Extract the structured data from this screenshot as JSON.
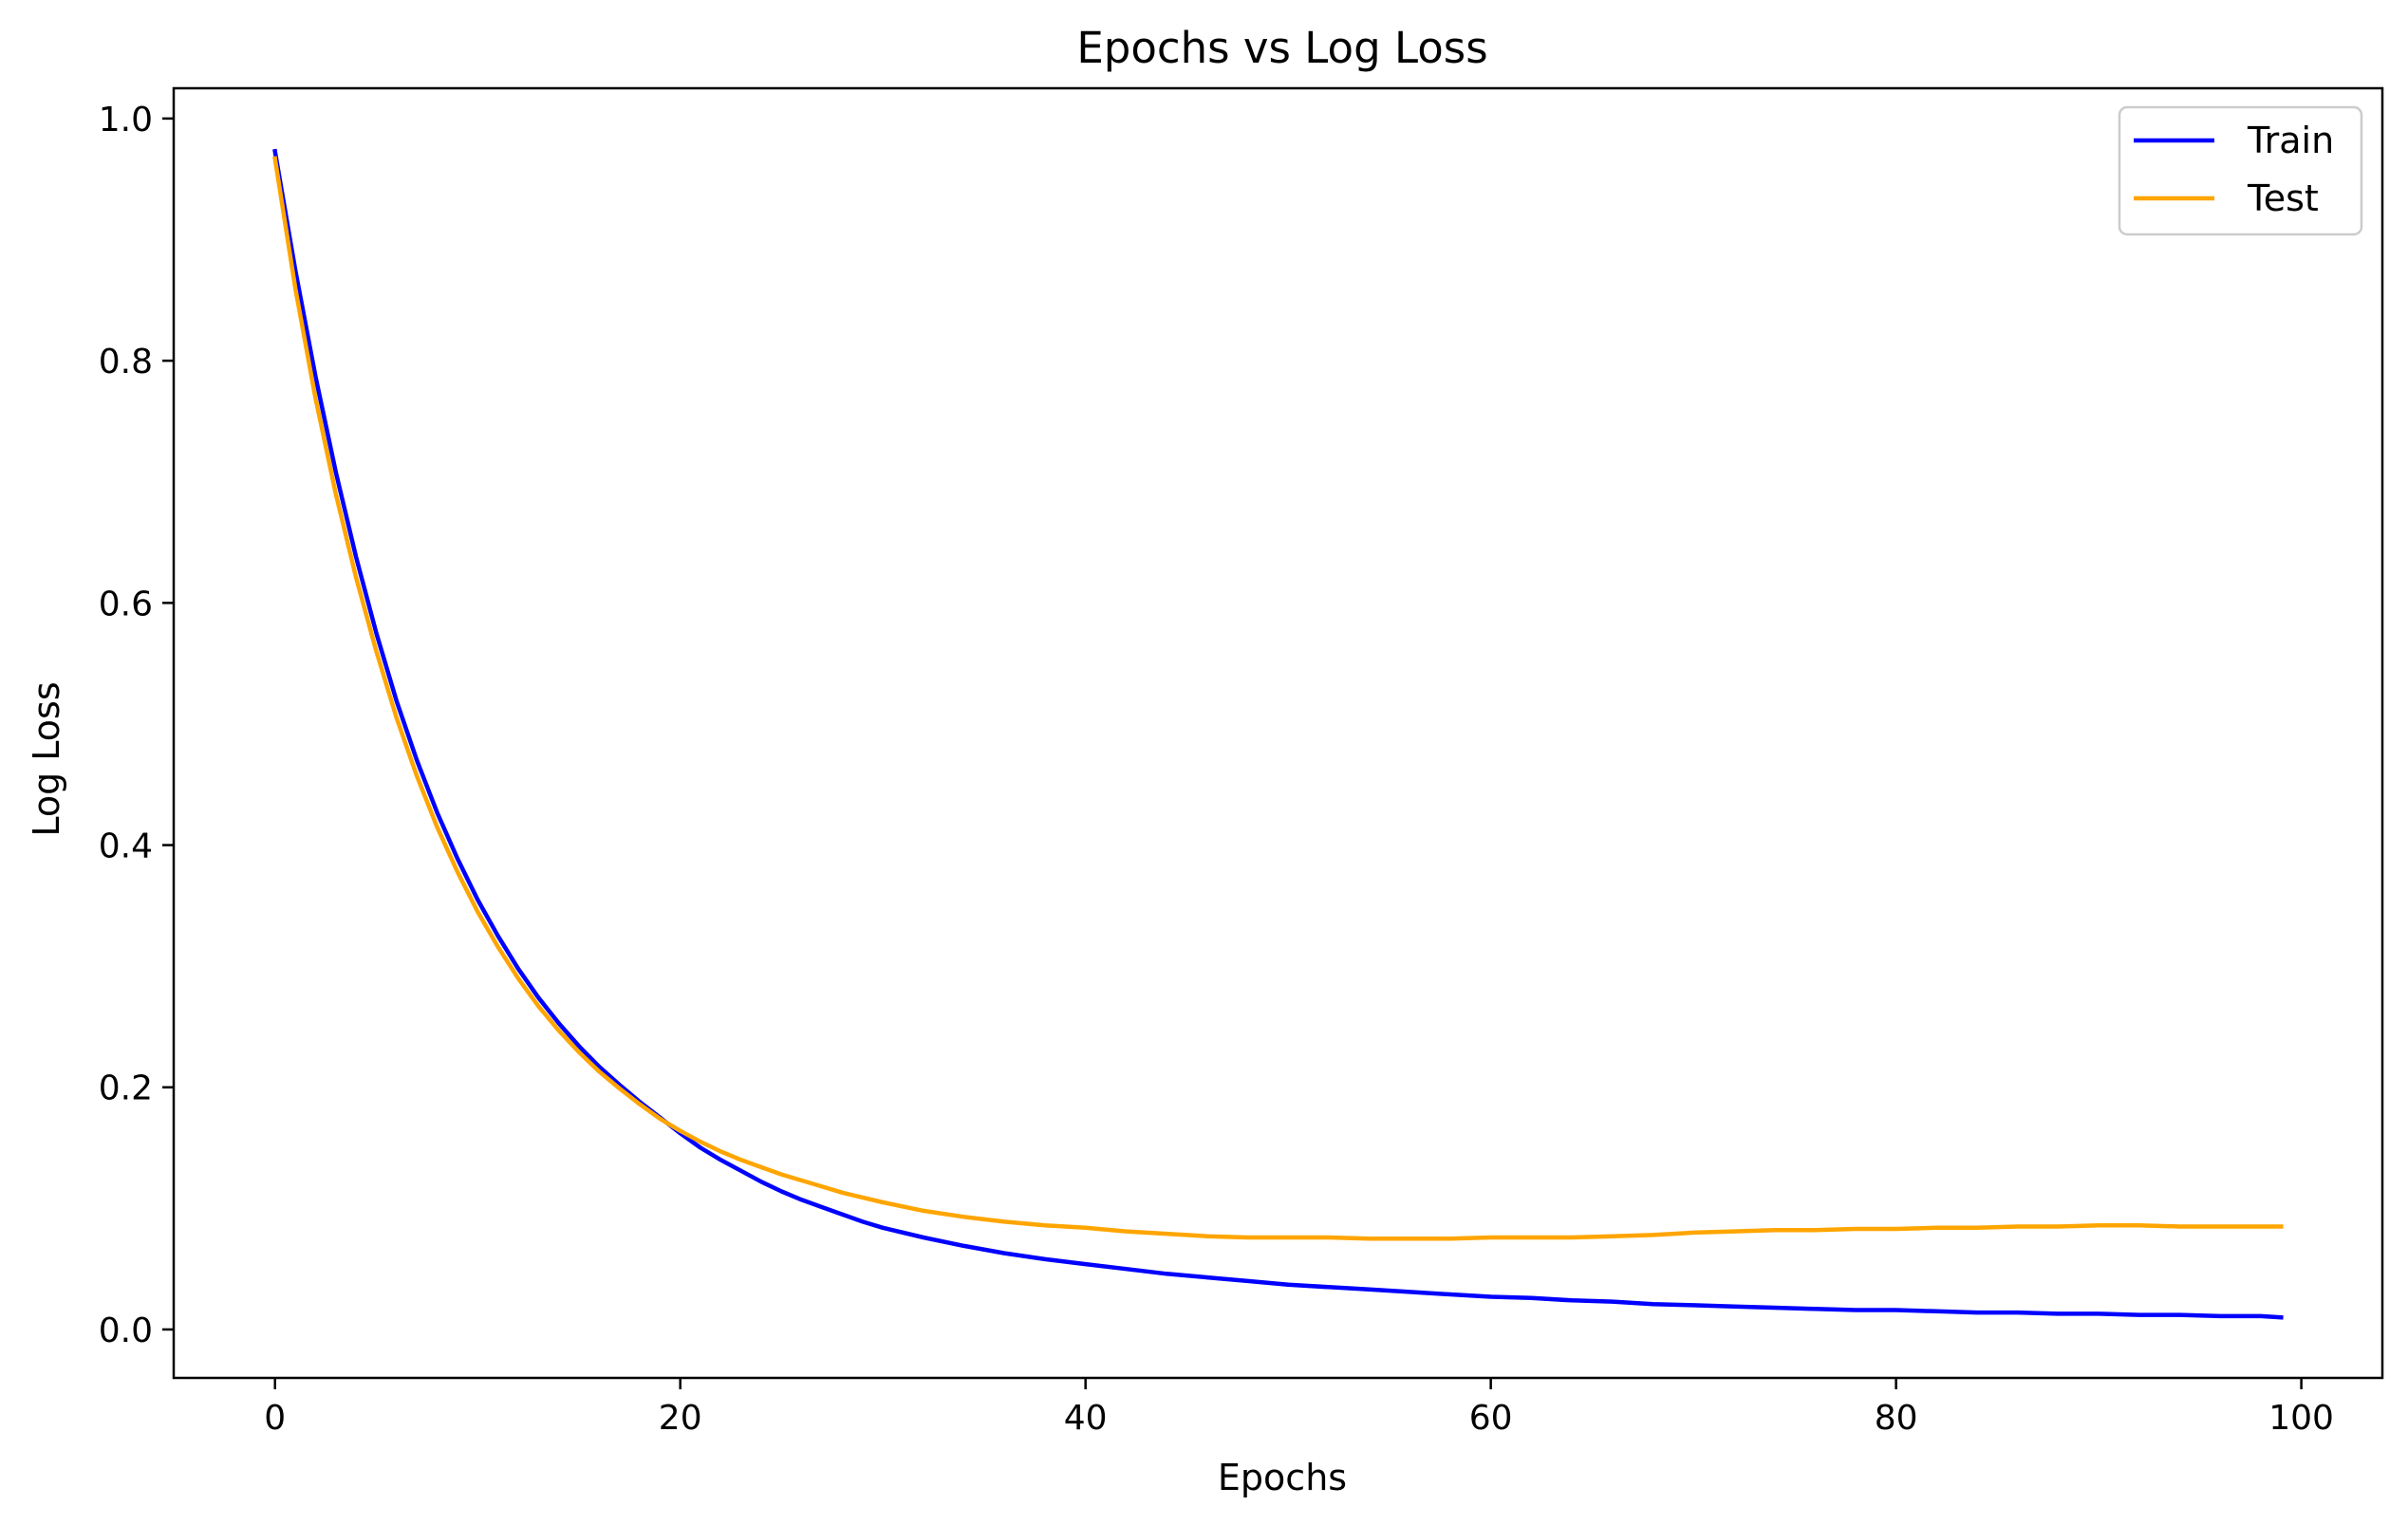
{
  "chart_data": {
    "type": "line",
    "title": "Epochs vs Log Loss",
    "xlabel": "Epochs",
    "ylabel": "Log Loss",
    "xlim": [
      -5,
      104
    ],
    "ylim": [
      -0.04,
      1.025
    ],
    "xticks": [
      0,
      20,
      40,
      60,
      80,
      100
    ],
    "xtick_labels": [
      "0",
      "20",
      "40",
      "60",
      "80",
      "100"
    ],
    "yticks": [
      0.0,
      0.2,
      0.4,
      0.6,
      0.8,
      1.0
    ],
    "ytick_labels": [
      "0.0",
      "0.2",
      "0.4",
      "0.6",
      "0.8",
      "1.0"
    ],
    "legend": {
      "placement": "top-right"
    },
    "grid": false,
    "series": [
      {
        "name": "Train",
        "color": "#0000ff",
        "x": [
          0,
          1,
          2,
          3,
          4,
          5,
          6,
          7,
          8,
          9,
          10,
          11,
          12,
          13,
          14,
          15,
          16,
          17,
          18,
          19,
          20,
          21,
          22,
          23,
          24,
          25,
          26,
          27,
          28,
          29,
          30,
          32,
          34,
          36,
          38,
          40,
          42,
          44,
          46,
          48,
          50,
          52,
          54,
          56,
          58,
          60,
          62,
          64,
          66,
          68,
          70,
          72,
          74,
          76,
          78,
          80,
          82,
          84,
          86,
          88,
          90,
          92,
          94,
          96,
          98,
          99
        ],
        "y": [
          0.973,
          0.875,
          0.787,
          0.708,
          0.638,
          0.575,
          0.519,
          0.47,
          0.427,
          0.389,
          0.355,
          0.325,
          0.298,
          0.274,
          0.253,
          0.234,
          0.217,
          0.202,
          0.188,
          0.175,
          0.162,
          0.15,
          0.14,
          0.131,
          0.122,
          0.114,
          0.107,
          0.101,
          0.095,
          0.089,
          0.084,
          0.076,
          0.069,
          0.063,
          0.058,
          0.054,
          0.05,
          0.046,
          0.043,
          0.04,
          0.037,
          0.035,
          0.033,
          0.031,
          0.029,
          0.027,
          0.026,
          0.024,
          0.023,
          0.021,
          0.02,
          0.019,
          0.018,
          0.017,
          0.016,
          0.016,
          0.015,
          0.014,
          0.014,
          0.013,
          0.013,
          0.012,
          0.012,
          0.011,
          0.011,
          0.01
        ]
      },
      {
        "name": "Test",
        "color": "#ffa500",
        "x": [
          0,
          1,
          2,
          3,
          4,
          5,
          6,
          7,
          8,
          9,
          10,
          11,
          12,
          13,
          14,
          15,
          16,
          17,
          18,
          19,
          20,
          21,
          22,
          23,
          24,
          25,
          26,
          27,
          28,
          29,
          30,
          32,
          34,
          36,
          38,
          40,
          42,
          44,
          46,
          48,
          50,
          52,
          54,
          56,
          58,
          60,
          62,
          64,
          66,
          68,
          70,
          72,
          74,
          76,
          78,
          80,
          82,
          84,
          86,
          88,
          90,
          92,
          94,
          96,
          98,
          99
        ],
        "y": [
          0.967,
          0.86,
          0.769,
          0.69,
          0.621,
          0.56,
          0.505,
          0.457,
          0.415,
          0.378,
          0.345,
          0.316,
          0.29,
          0.267,
          0.247,
          0.229,
          0.213,
          0.199,
          0.186,
          0.174,
          0.164,
          0.155,
          0.147,
          0.14,
          0.134,
          0.128,
          0.123,
          0.118,
          0.113,
          0.109,
          0.105,
          0.098,
          0.093,
          0.089,
          0.086,
          0.084,
          0.081,
          0.079,
          0.077,
          0.076,
          0.076,
          0.076,
          0.075,
          0.075,
          0.075,
          0.076,
          0.076,
          0.076,
          0.077,
          0.078,
          0.08,
          0.081,
          0.082,
          0.082,
          0.083,
          0.083,
          0.084,
          0.084,
          0.085,
          0.085,
          0.086,
          0.086,
          0.085,
          0.085,
          0.085,
          0.085
        ]
      }
    ]
  }
}
